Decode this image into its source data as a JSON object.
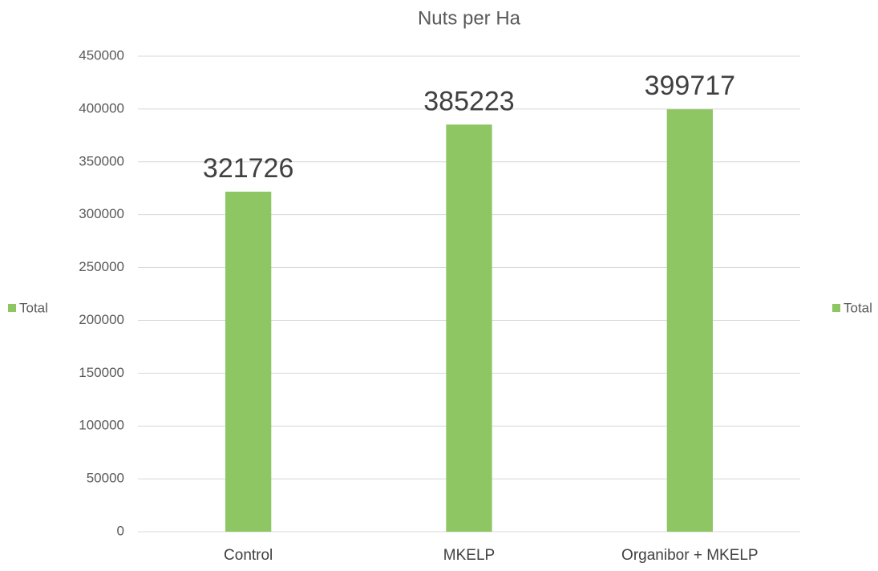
{
  "chart_data": {
    "type": "bar",
    "title": "Nuts per Ha",
    "categories": [
      "Control",
      "MKELP",
      "Organibor + MKELP"
    ],
    "series": [
      {
        "name": "Total",
        "color": "#8dc663",
        "values": [
          321726,
          385223,
          399717
        ]
      }
    ],
    "ylim": [
      0,
      450000
    ],
    "yticks": [
      0,
      50000,
      100000,
      150000,
      200000,
      250000,
      300000,
      350000,
      400000,
      450000
    ],
    "grid": true,
    "legend": "left-right"
  }
}
